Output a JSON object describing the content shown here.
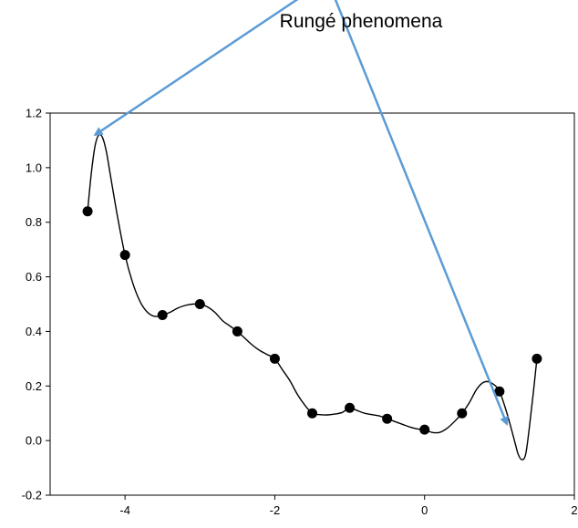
{
  "annotation_text": "Rungé phenomena",
  "colors": {
    "arrow": "#5b9bd5",
    "curve": "#000000",
    "points": "#000000",
    "axes": "#000000"
  },
  "chart_data": {
    "type": "scatter",
    "title": "",
    "xlabel": "",
    "ylabel": "",
    "xlim": [
      -5,
      2
    ],
    "ylim": [
      -0.2,
      1.2
    ],
    "x_ticks": [
      -4,
      -2,
      0,
      2
    ],
    "y_ticks": [
      -0.2,
      0.0,
      0.2,
      0.4,
      0.6,
      0.8,
      1.0,
      1.2
    ],
    "x_tick_labels": [
      "-4",
      "-2",
      "0",
      "2"
    ],
    "y_tick_labels": [
      "-0.2",
      "0.0",
      "0.2",
      "0.4",
      "0.6",
      "0.8",
      "1.0",
      "1.2"
    ],
    "grid": false,
    "points": {
      "x": [
        -4.5,
        -4.0,
        -3.5,
        -3.0,
        -2.5,
        -2.0,
        -1.5,
        -1.0,
        -0.5,
        0.0,
        0.5,
        1.0,
        1.5
      ],
      "y": [
        0.84,
        0.68,
        0.46,
        0.5,
        0.4,
        0.3,
        0.1,
        0.12,
        0.08,
        0.04,
        0.1,
        0.18,
        0.3
      ]
    },
    "curve": {
      "x": [
        -4.5,
        -4.45,
        -4.4,
        -4.35,
        -4.3,
        -4.25,
        -4.2,
        -4.1,
        -4.0,
        -3.9,
        -3.8,
        -3.7,
        -3.6,
        -3.5,
        -3.4,
        -3.3,
        -3.2,
        -3.1,
        -3.0,
        -2.9,
        -2.8,
        -2.7,
        -2.6,
        -2.5,
        -2.4,
        -2.3,
        -2.2,
        -2.1,
        -2.0,
        -1.9,
        -1.8,
        -1.7,
        -1.6,
        -1.5,
        -1.4,
        -1.3,
        -1.2,
        -1.1,
        -1.0,
        -0.9,
        -0.8,
        -0.7,
        -0.6,
        -0.5,
        -0.4,
        -0.3,
        -0.2,
        -0.1,
        0.0,
        0.1,
        0.2,
        0.3,
        0.4,
        0.5,
        0.6,
        0.7,
        0.8,
        0.9,
        1.0,
        1.1,
        1.2,
        1.25,
        1.3,
        1.35,
        1.4,
        1.45,
        1.5
      ],
      "y": [
        0.84,
        0.98,
        1.08,
        1.12,
        1.11,
        1.06,
        0.98,
        0.82,
        0.68,
        0.58,
        0.51,
        0.47,
        0.455,
        0.46,
        0.47,
        0.485,
        0.495,
        0.5,
        0.5,
        0.49,
        0.47,
        0.44,
        0.42,
        0.4,
        0.375,
        0.35,
        0.33,
        0.315,
        0.3,
        0.26,
        0.22,
        0.17,
        0.13,
        0.1,
        0.095,
        0.094,
        0.097,
        0.103,
        0.12,
        0.11,
        0.1,
        0.095,
        0.09,
        0.08,
        0.07,
        0.06,
        0.05,
        0.043,
        0.04,
        0.03,
        0.03,
        0.045,
        0.07,
        0.1,
        0.14,
        0.19,
        0.215,
        0.21,
        0.18,
        0.1,
        0.0,
        -0.05,
        -0.07,
        -0.05,
        0.05,
        0.17,
        0.3
      ]
    },
    "annotations": [
      {
        "text": "Rungé phenomena",
        "arrow_from": [
          -1.3,
          1.69
        ],
        "arrow_to": [
          [
            -4.4,
            1.12
          ],
          [
            1.1,
            0.06
          ]
        ]
      }
    ]
  }
}
